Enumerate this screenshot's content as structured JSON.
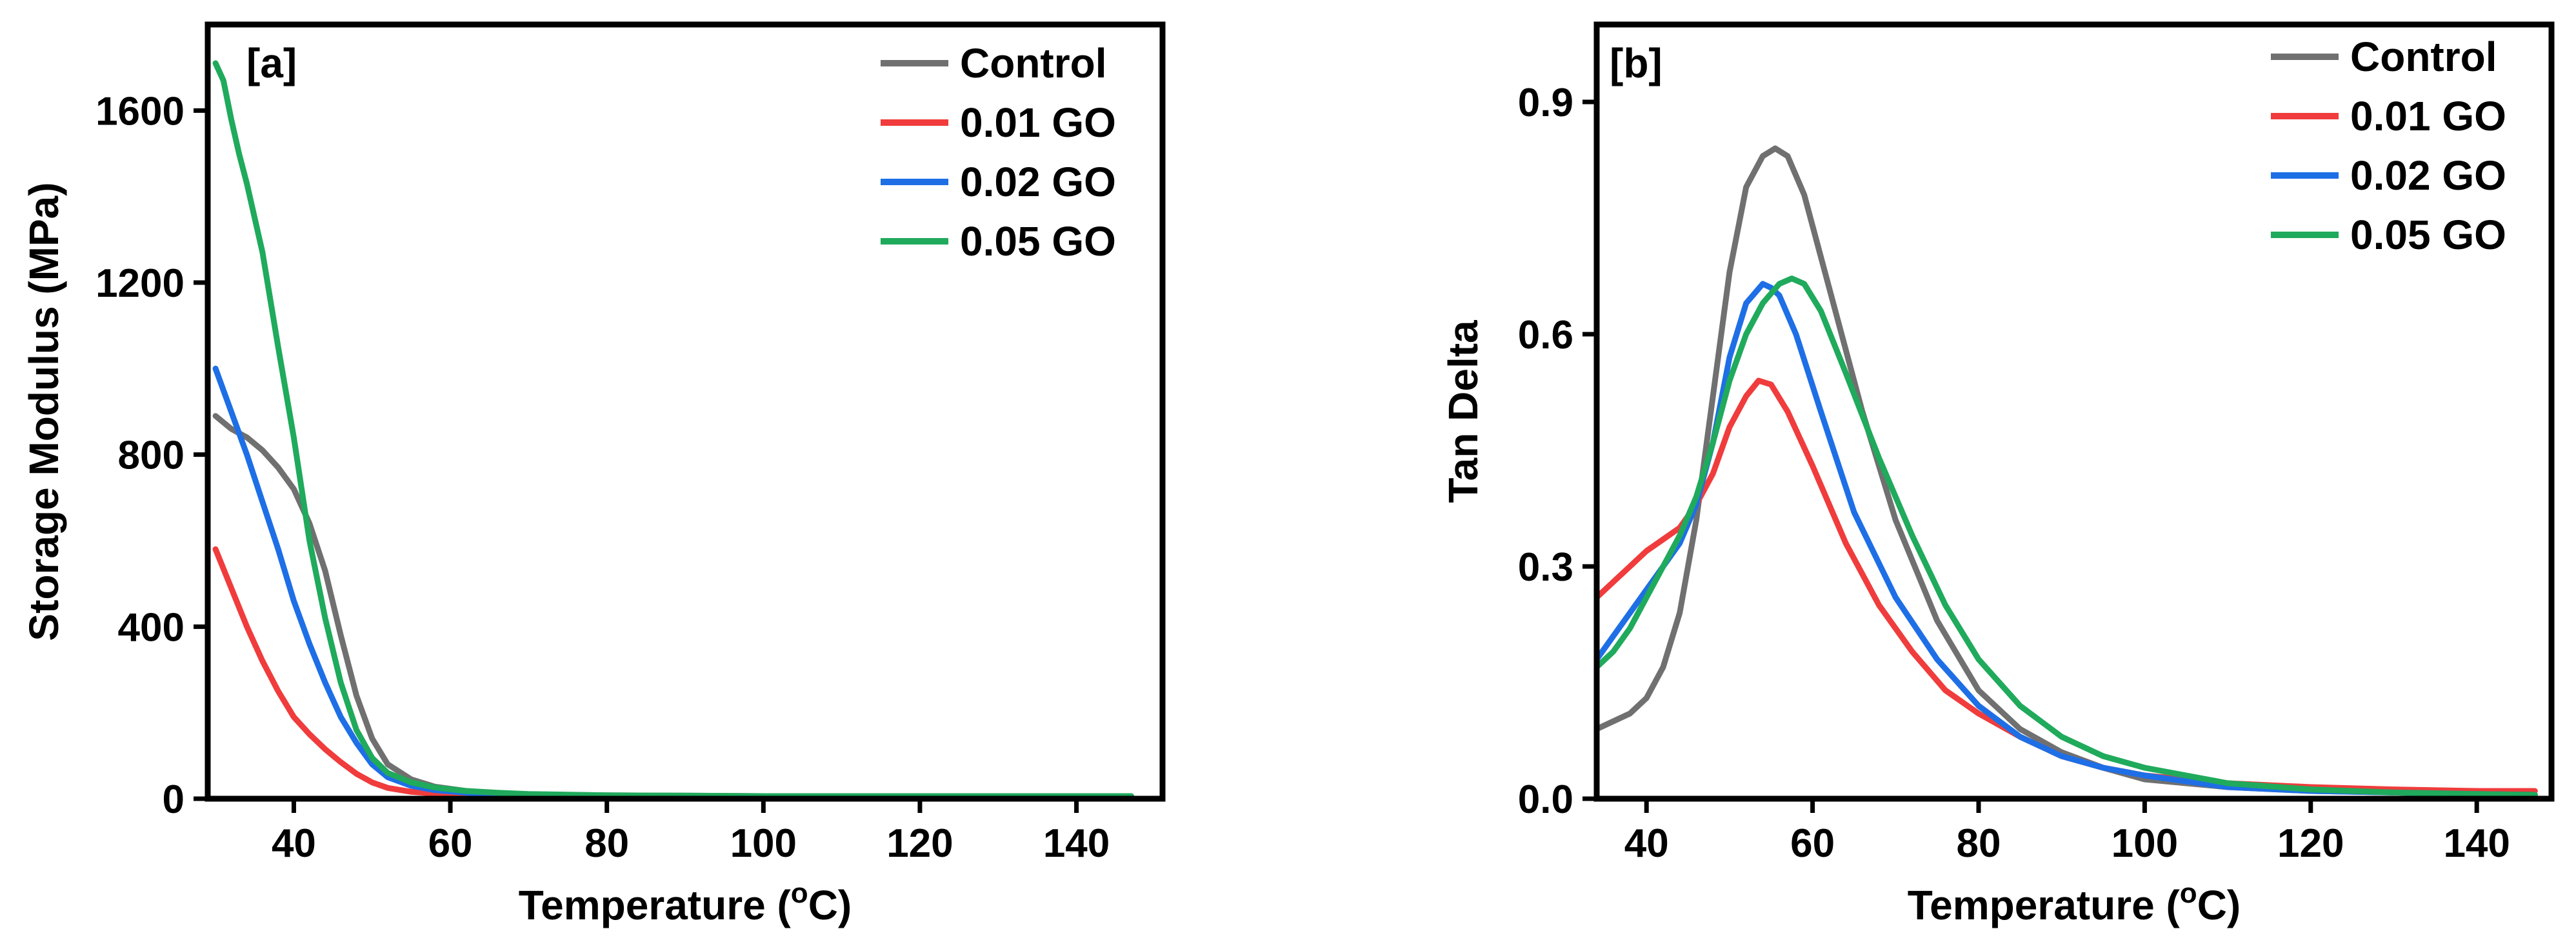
{
  "chart_data": [
    {
      "type": "line",
      "panel_label": "[a]",
      "xlabel": "Temperature (",
      "xlabel_sup": "o",
      "xlabel_unit": "C)",
      "ylabel": "Storage Modulus (MPa)",
      "xlim": [
        29,
        151
      ],
      "ylim": [
        0,
        1800
      ],
      "xticks": [
        40,
        60,
        80,
        100,
        120,
        140
      ],
      "xtick_labels": [
        "40",
        "60",
        "80",
        "100",
        "120",
        "140"
      ],
      "yticks": [
        0,
        400,
        800,
        1200,
        1600
      ],
      "ytick_labels": [
        "0",
        "400",
        "800",
        "1200",
        "1600"
      ],
      "legend_position": "top-right",
      "series": [
        {
          "name": "Control",
          "color": "#707070",
          "x": [
            30,
            32,
            34,
            36,
            38,
            40,
            42,
            44,
            46,
            48,
            50,
            52,
            55,
            58,
            62,
            66,
            70,
            80,
            90,
            100,
            110,
            120,
            130,
            140,
            147
          ],
          "y": [
            890,
            860,
            840,
            810,
            770,
            720,
            640,
            530,
            380,
            240,
            140,
            80,
            45,
            28,
            18,
            13,
            10,
            8,
            7,
            6,
            6,
            6,
            6,
            6,
            6
          ]
        },
        {
          "name": "0.01 GO",
          "color": "#f03c3c",
          "x": [
            30,
            32,
            34,
            36,
            38,
            40,
            42,
            44,
            46,
            48,
            50,
            52,
            55,
            58,
            62,
            66,
            70,
            80,
            90,
            100,
            110,
            120,
            130,
            140,
            147
          ],
          "y": [
            580,
            490,
            400,
            320,
            250,
            190,
            150,
            115,
            85,
            58,
            38,
            25,
            16,
            12,
            9,
            8,
            7,
            6,
            6,
            5,
            5,
            5,
            5,
            5,
            5
          ]
        },
        {
          "name": "0.02 GO",
          "color": "#1e6fe6",
          "x": [
            30,
            32,
            34,
            36,
            38,
            40,
            42,
            44,
            46,
            48,
            50,
            52,
            55,
            58,
            62,
            66,
            70,
            80,
            90,
            100,
            110,
            120,
            130,
            140,
            147
          ],
          "y": [
            1000,
            900,
            800,
            690,
            580,
            460,
            360,
            270,
            190,
            130,
            80,
            50,
            30,
            20,
            14,
            11,
            9,
            7,
            6,
            6,
            6,
            6,
            6,
            6,
            6
          ]
        },
        {
          "name": "0.05 GO",
          "color": "#1faa5c",
          "x": [
            30,
            31,
            32,
            33,
            34,
            36,
            38,
            40,
            42,
            44,
            46,
            48,
            50,
            52,
            55,
            58,
            62,
            66,
            70,
            80,
            90,
            100,
            110,
            120,
            130,
            140,
            147
          ],
          "y": [
            1710,
            1670,
            1580,
            1500,
            1430,
            1270,
            1050,
            840,
            600,
            420,
            270,
            160,
            95,
            60,
            38,
            26,
            18,
            14,
            11,
            8,
            7,
            6,
            6,
            6,
            6,
            6,
            6
          ]
        }
      ]
    },
    {
      "type": "line",
      "panel_label": "[b]",
      "xlabel": "Temperature (",
      "xlabel_sup": "o",
      "xlabel_unit": "C)",
      "ylabel": "Tan Delta",
      "xlim": [
        34,
        149
      ],
      "ylim": [
        0,
        1.0
      ],
      "xticks": [
        40,
        60,
        80,
        100,
        120,
        140
      ],
      "xtick_labels": [
        "40",
        "60",
        "80",
        "100",
        "120",
        "140"
      ],
      "yticks": [
        0,
        0.3,
        0.6,
        0.9
      ],
      "ytick_labels": [
        "0.0",
        "0.3",
        "0.6",
        "0.9"
      ],
      "legend_position": "top-right",
      "series": [
        {
          "name": "Control",
          "color": "#707070",
          "x": [
            34,
            36,
            38,
            40,
            42,
            44,
            46,
            48,
            50,
            52,
            54,
            55.5,
            57,
            59,
            62,
            66,
            70,
            75,
            80,
            85,
            90,
            95,
            100,
            110,
            120,
            130,
            140,
            147
          ],
          "y": [
            0.09,
            0.1,
            0.11,
            0.13,
            0.17,
            0.24,
            0.36,
            0.52,
            0.68,
            0.79,
            0.83,
            0.84,
            0.83,
            0.78,
            0.66,
            0.5,
            0.36,
            0.23,
            0.14,
            0.09,
            0.06,
            0.04,
            0.025,
            0.015,
            0.01,
            0.008,
            0.006,
            0.005
          ]
        },
        {
          "name": "0.01 GO",
          "color": "#f03c3c",
          "x": [
            34,
            36,
            38,
            40,
            42,
            44,
            46,
            48,
            50,
            52,
            53.5,
            55,
            57,
            60,
            64,
            68,
            72,
            76,
            80,
            85,
            90,
            95,
            100,
            110,
            120,
            130,
            140,
            147
          ],
          "y": [
            0.26,
            0.28,
            0.3,
            0.32,
            0.335,
            0.35,
            0.38,
            0.42,
            0.48,
            0.52,
            0.54,
            0.535,
            0.5,
            0.43,
            0.33,
            0.25,
            0.19,
            0.14,
            0.11,
            0.08,
            0.055,
            0.04,
            0.03,
            0.02,
            0.015,
            0.012,
            0.01,
            0.01
          ]
        },
        {
          "name": "0.02 GO",
          "color": "#1e6fe6",
          "x": [
            34,
            36,
            38,
            40,
            42,
            44,
            46,
            48,
            50,
            52,
            54,
            55,
            56,
            58,
            61,
            65,
            70,
            75,
            80,
            85,
            90,
            95,
            100,
            110,
            120,
            130,
            140,
            147
          ],
          "y": [
            0.18,
            0.21,
            0.24,
            0.27,
            0.3,
            0.33,
            0.38,
            0.46,
            0.57,
            0.64,
            0.665,
            0.66,
            0.65,
            0.6,
            0.5,
            0.37,
            0.26,
            0.18,
            0.12,
            0.08,
            0.055,
            0.04,
            0.03,
            0.015,
            0.01,
            0.008,
            0.006,
            0.005
          ]
        },
        {
          "name": "0.05 GO",
          "color": "#1faa5c",
          "x": [
            34,
            36,
            38,
            40,
            42,
            44,
            46,
            48,
            50,
            52,
            54,
            56,
            57.5,
            59,
            61,
            64,
            68,
            72,
            76,
            80,
            85,
            90,
            95,
            100,
            110,
            120,
            130,
            140,
            147
          ],
          "y": [
            0.17,
            0.19,
            0.22,
            0.26,
            0.3,
            0.34,
            0.39,
            0.46,
            0.54,
            0.6,
            0.64,
            0.665,
            0.672,
            0.665,
            0.63,
            0.55,
            0.44,
            0.34,
            0.25,
            0.18,
            0.12,
            0.08,
            0.055,
            0.04,
            0.02,
            0.012,
            0.008,
            0.006,
            0.005
          ]
        }
      ]
    }
  ]
}
